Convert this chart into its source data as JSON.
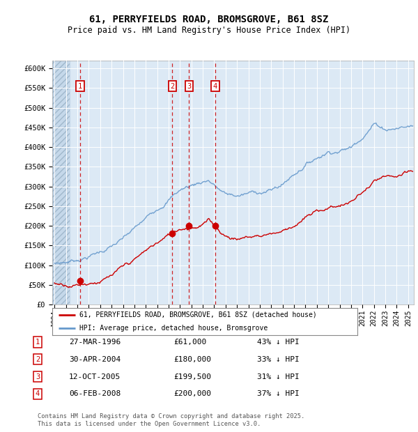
{
  "title": "61, PERRYFIELDS ROAD, BROMSGROVE, B61 8SZ",
  "subtitle": "Price paid vs. HM Land Registry's House Price Index (HPI)",
  "ylabel_ticks": [
    "£0",
    "£50K",
    "£100K",
    "£150K",
    "£200K",
    "£250K",
    "£300K",
    "£350K",
    "£400K",
    "£450K",
    "£500K",
    "£550K",
    "£600K"
  ],
  "ytick_values": [
    0,
    50000,
    100000,
    150000,
    200000,
    250000,
    300000,
    350000,
    400000,
    450000,
    500000,
    550000,
    600000
  ],
  "ylim": [
    0,
    620000
  ],
  "xlim_start": 1993.8,
  "xlim_end": 2025.5,
  "background_color": "#dce9f5",
  "grid_color": "#ffffff",
  "sale_marker_color": "#cc0000",
  "hpi_line_color": "#6699cc",
  "red_line_color": "#cc0000",
  "vline_color": "#cc0000",
  "transaction_dates_year": [
    1996.23,
    2004.33,
    2005.79,
    2008.09
  ],
  "transaction_prices": [
    61000,
    180000,
    199500,
    200000
  ],
  "transaction_labels": [
    "1",
    "2",
    "3",
    "4"
  ],
  "transaction_display": [
    {
      "num": "1",
      "date": "27-MAR-1996",
      "price": "£61,000",
      "hpi": "43% ↓ HPI"
    },
    {
      "num": "2",
      "date": "30-APR-2004",
      "price": "£180,000",
      "hpi": "33% ↓ HPI"
    },
    {
      "num": "3",
      "date": "12-OCT-2005",
      "price": "£199,500",
      "hpi": "31% ↓ HPI"
    },
    {
      "num": "4",
      "date": "06-FEB-2008",
      "price": "£200,000",
      "hpi": "37% ↓ HPI"
    }
  ],
  "legend_entries": [
    "61, PERRYFIELDS ROAD, BROMSGROVE, B61 8SZ (detached house)",
    "HPI: Average price, detached house, Bromsgrove"
  ],
  "footer_text": "Contains HM Land Registry data © Crown copyright and database right 2025.\nThis data is licensed under the Open Government Licence v3.0.",
  "xticks": [
    1994,
    1995,
    1996,
    1997,
    1998,
    1999,
    2000,
    2001,
    2002,
    2003,
    2004,
    2005,
    2006,
    2007,
    2008,
    2009,
    2010,
    2011,
    2012,
    2013,
    2014,
    2015,
    2016,
    2017,
    2018,
    2019,
    2020,
    2021,
    2022,
    2023,
    2024,
    2025
  ]
}
